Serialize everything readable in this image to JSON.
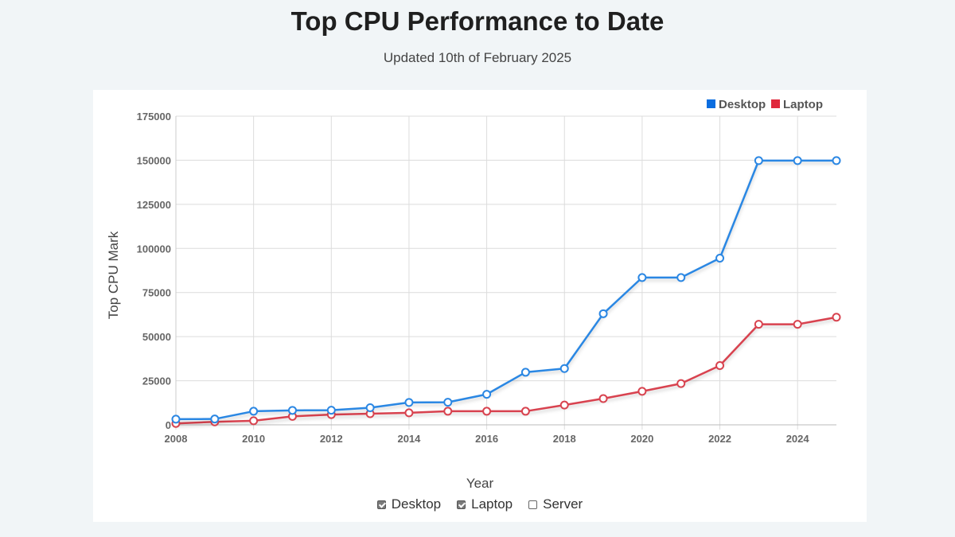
{
  "page": {
    "title": "Top CPU Performance to Date",
    "subtitle": "Updated 10th of February 2025"
  },
  "controls": [
    {
      "label": "Desktop",
      "checked": true
    },
    {
      "label": "Laptop",
      "checked": true
    },
    {
      "label": "Server",
      "checked": false
    }
  ],
  "chart_data": {
    "type": "line",
    "xlabel": "Year",
    "ylabel": "Top CPU Mark",
    "xlim": [
      2008,
      2025
    ],
    "ylim": [
      0,
      175000
    ],
    "xticks": [
      2008,
      2010,
      2012,
      2014,
      2016,
      2018,
      2020,
      2022,
      2024
    ],
    "yticks": [
      0,
      25000,
      50000,
      75000,
      100000,
      125000,
      150000,
      175000
    ],
    "grid": true,
    "legend_position": "top-right",
    "x": [
      2008,
      2009,
      2010,
      2011,
      2012,
      2013,
      2014,
      2015,
      2016,
      2017,
      2018,
      2019,
      2020,
      2021,
      2022,
      2023,
      2024,
      2025
    ],
    "series": [
      {
        "name": "Desktop",
        "color": "#2b87e3",
        "legend_color": "#0a6de0",
        "values": [
          3200,
          3300,
          7700,
          8200,
          8300,
          9700,
          12700,
          12800,
          17300,
          29800,
          31900,
          63000,
          83500,
          83500,
          94500,
          149800,
          149800,
          149800
        ]
      },
      {
        "name": "Laptop",
        "color": "#d8434f",
        "legend_color": "#e0283c",
        "values": [
          800,
          1700,
          2300,
          4800,
          5800,
          6300,
          6800,
          7700,
          7700,
          7700,
          11200,
          14900,
          19000,
          23400,
          33600,
          57000,
          57000,
          61000
        ]
      }
    ]
  }
}
